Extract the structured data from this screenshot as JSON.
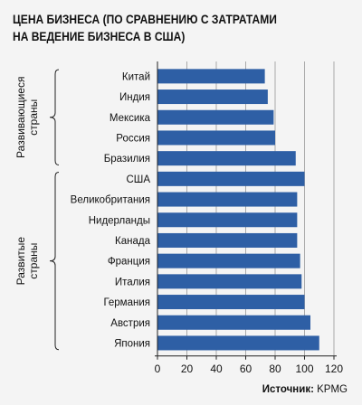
{
  "title": "ЦЕНА БИЗНЕСА (ПО СРАВНЕНИЮ С ЗАТРАТАМИ\nНА ВЕДЕНИЕ БИЗНЕСА В США)",
  "source": {
    "label": "Источник:",
    "value": "KPMG"
  },
  "colors": {
    "bar": "#2e5fa5",
    "background": "#f4f4f4",
    "grid": "#777777"
  },
  "chart_data": {
    "type": "bar",
    "orientation": "horizontal",
    "title": "ЦЕНА БИЗНЕСА (ПО СРАВНЕНИЮ С ЗАТРАТАМИ НА ВЕДЕНИЕ БИЗНЕСА В США)",
    "categories": [
      "Китай",
      "Индия",
      "Мексика",
      "Россия",
      "Бразилия",
      "США",
      "Великобритания",
      "Нидерланды",
      "Канада",
      "Франция",
      "Италия",
      "Германия",
      "Австрия",
      "Япония"
    ],
    "values": [
      73,
      75,
      79,
      80,
      94,
      100,
      95,
      95,
      95,
      97,
      98,
      100,
      104,
      110
    ],
    "groups": [
      {
        "label": "Развивающиеся страны",
        "lines": [
          "Развивающиеся",
          "страны"
        ],
        "from": 0,
        "to": 4
      },
      {
        "label": "Развитые страны",
        "lines": [
          "Развитые",
          "страны"
        ],
        "from": 5,
        "to": 13
      }
    ],
    "xlim": [
      0,
      120
    ],
    "xticks": [
      0,
      20,
      40,
      60,
      80,
      100,
      120
    ],
    "xlabel": "",
    "ylabel": "",
    "grid": true
  }
}
